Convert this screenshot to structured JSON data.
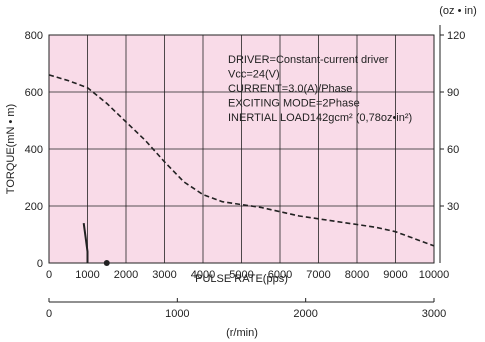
{
  "chart_data": {
    "type": "line",
    "xlabel": "PULSE RATE(pps)",
    "ylabel": "TORQUE(mN • m)",
    "y2_unit": "(oz • in)",
    "rpm_unit": "(r/min)",
    "xlim": [
      0,
      10000
    ],
    "ylim": [
      0,
      800
    ],
    "y2lim": [
      0,
      120
    ],
    "rpm_lim": [
      0,
      3000
    ],
    "x_ticks": [
      "0",
      "1000",
      "2000",
      "3000",
      "4000",
      "5000",
      "6000",
      "7000",
      "8000",
      "9000",
      "10000"
    ],
    "y_ticks": [
      "0",
      "200",
      "400",
      "600",
      "800"
    ],
    "y2_ticks": [
      "30",
      "60",
      "90",
      "120"
    ],
    "rpm_ticks": [
      "0",
      "1000",
      "2000",
      "3000"
    ],
    "grid": true,
    "background": "#f9dbe8",
    "line_color": "#222222",
    "annotations": [
      "DRIVER=Constant-current driver",
      "Vcc=24(V)",
      "CURRENT=3.0(A)/Phase",
      "EXCITING MODE=2Phase",
      "INERTIAL LOAD142gcm² (0,78oz•in²)"
    ],
    "series": [
      {
        "style": "dashed",
        "x": [
          0,
          500,
          1000,
          1500,
          2000,
          2500,
          3000,
          3500,
          4000,
          4500,
          5000,
          5500,
          6000,
          6500,
          7000,
          7500,
          8000,
          8500,
          9000,
          9500,
          10000
        ],
        "y": [
          660,
          640,
          615,
          560,
          495,
          430,
          355,
          285,
          240,
          215,
          205,
          195,
          180,
          165,
          155,
          145,
          135,
          125,
          110,
          85,
          60
        ]
      },
      {
        "style": "solid",
        "x": [
          900,
          950,
          1000,
          1000
        ],
        "y": [
          140,
          90,
          40,
          0
        ]
      }
    ],
    "marker": {
      "x": 1500,
      "y": 0
    }
  }
}
